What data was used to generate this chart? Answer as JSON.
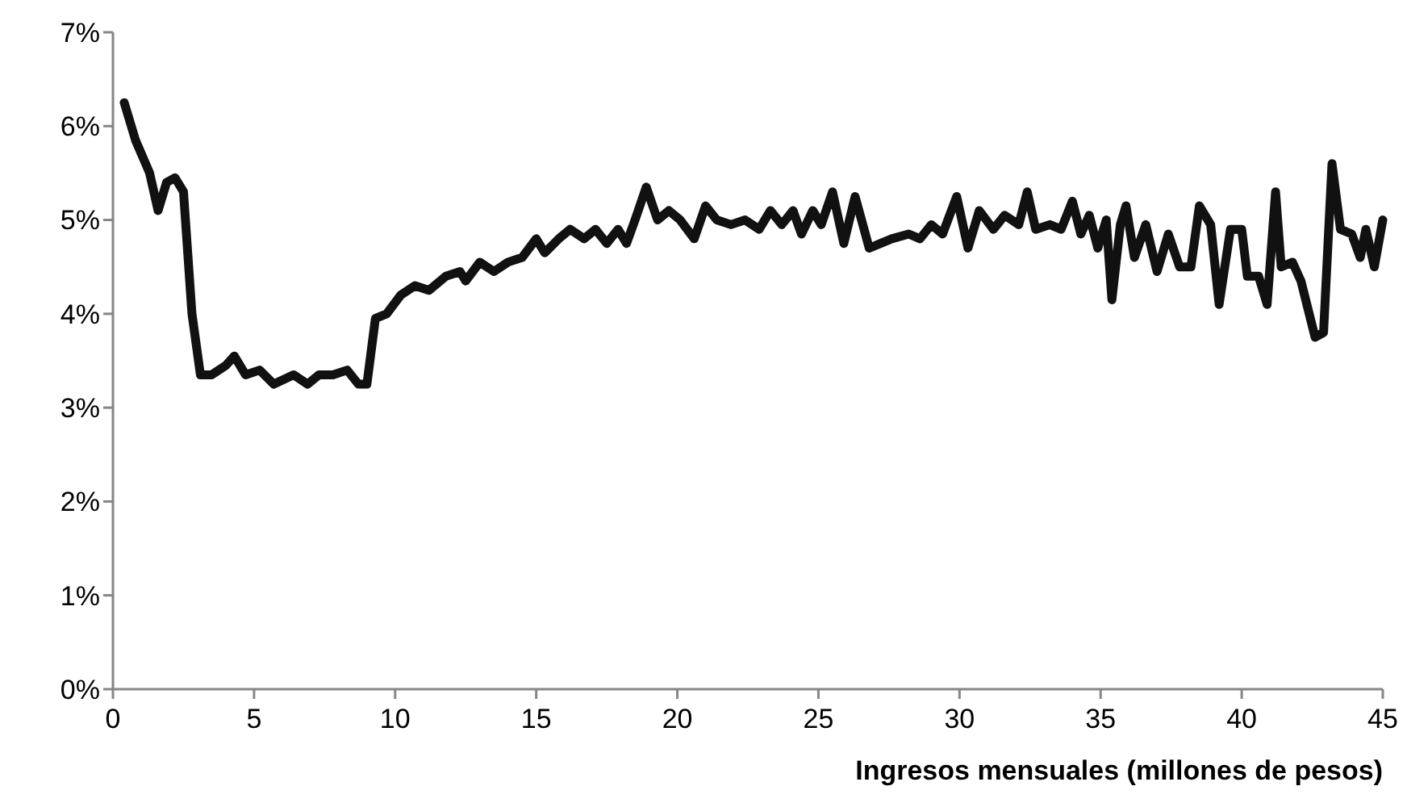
{
  "chart_data": {
    "type": "line",
    "xlabel": "Ingresos mensuales (millones de pesos)",
    "xlim": [
      0,
      45
    ],
    "xticks": [
      0,
      5,
      10,
      15,
      20,
      25,
      30,
      35,
      40,
      45
    ],
    "ylim": [
      0,
      7
    ],
    "yticks": [
      {
        "value": 0,
        "label": "0%"
      },
      {
        "value": 1,
        "label": "1%"
      },
      {
        "value": 2,
        "label": "2%"
      },
      {
        "value": 3,
        "label": "3%"
      },
      {
        "value": 4,
        "label": "4%"
      },
      {
        "value": 5,
        "label": "5%"
      },
      {
        "value": 6,
        "label": "6%"
      },
      {
        "value": 7,
        "label": "7%"
      }
    ],
    "grid": false,
    "marker": "none",
    "line_style": "solid",
    "x": [
      0.4,
      0.8,
      1.3,
      1.6,
      1.9,
      2.2,
      2.5,
      2.8,
      3.1,
      3.5,
      4.0,
      4.3,
      4.7,
      5.2,
      5.7,
      6.4,
      6.9,
      7.3,
      7.8,
      8.3,
      8.7,
      9.0,
      9.3,
      9.7,
      10.2,
      10.7,
      11.2,
      11.8,
      12.3,
      12.5,
      13.0,
      13.5,
      14.0,
      14.5,
      15.0,
      15.3,
      15.8,
      16.2,
      16.7,
      17.1,
      17.5,
      17.9,
      18.2,
      18.5,
      18.9,
      19.3,
      19.7,
      20.1,
      20.6,
      21.0,
      21.4,
      21.9,
      22.4,
      22.9,
      23.3,
      23.7,
      24.1,
      24.4,
      24.8,
      25.1,
      25.5,
      25.9,
      26.3,
      26.8,
      27.2,
      27.6,
      28.2,
      28.6,
      29.0,
      29.4,
      29.9,
      30.3,
      30.7,
      31.2,
      31.6,
      32.1,
      32.4,
      32.7,
      33.2,
      33.6,
      34.0,
      34.3,
      34.6,
      34.9,
      35.2,
      35.4,
      35.7,
      35.9,
      36.2,
      36.6,
      37.0,
      37.4,
      37.8,
      38.2,
      38.5,
      38.9,
      39.2,
      39.6,
      40.0,
      40.2,
      40.6,
      40.9,
      41.2,
      41.4,
      41.8,
      42.1,
      42.6,
      42.9,
      43.2,
      43.5,
      43.9,
      44.2,
      44.4,
      44.7,
      45.0
    ],
    "series": [
      {
        "color": "#111111",
        "values": [
          6.25,
          5.85,
          5.5,
          5.1,
          5.4,
          5.45,
          5.3,
          4.0,
          3.35,
          3.35,
          3.45,
          3.55,
          3.35,
          3.4,
          3.25,
          3.35,
          3.25,
          3.35,
          3.35,
          3.4,
          3.25,
          3.25,
          3.95,
          4.0,
          4.2,
          4.3,
          4.25,
          4.4,
          4.45,
          4.35,
          4.55,
          4.45,
          4.55,
          4.6,
          4.8,
          4.65,
          4.8,
          4.9,
          4.8,
          4.9,
          4.75,
          4.9,
          4.75,
          5.0,
          5.35,
          5.0,
          5.1,
          5.0,
          4.8,
          5.15,
          5.0,
          4.95,
          5.0,
          4.9,
          5.1,
          4.95,
          5.1,
          4.85,
          5.1,
          4.95,
          5.3,
          4.75,
          5.25,
          4.7,
          4.75,
          4.8,
          4.85,
          4.8,
          4.95,
          4.85,
          5.25,
          4.7,
          5.1,
          4.9,
          5.05,
          4.95,
          5.3,
          4.9,
          4.95,
          4.9,
          5.2,
          4.85,
          5.05,
          4.7,
          5.0,
          4.15,
          4.95,
          5.15,
          4.6,
          4.95,
          4.45,
          4.85,
          4.5,
          4.5,
          5.15,
          4.95,
          4.1,
          4.9,
          4.9,
          4.4,
          4.4,
          4.1,
          5.3,
          4.5,
          4.55,
          4.35,
          3.75,
          3.8,
          5.6,
          4.9,
          4.85,
          4.6,
          4.9,
          4.5,
          5.0
        ]
      }
    ]
  }
}
